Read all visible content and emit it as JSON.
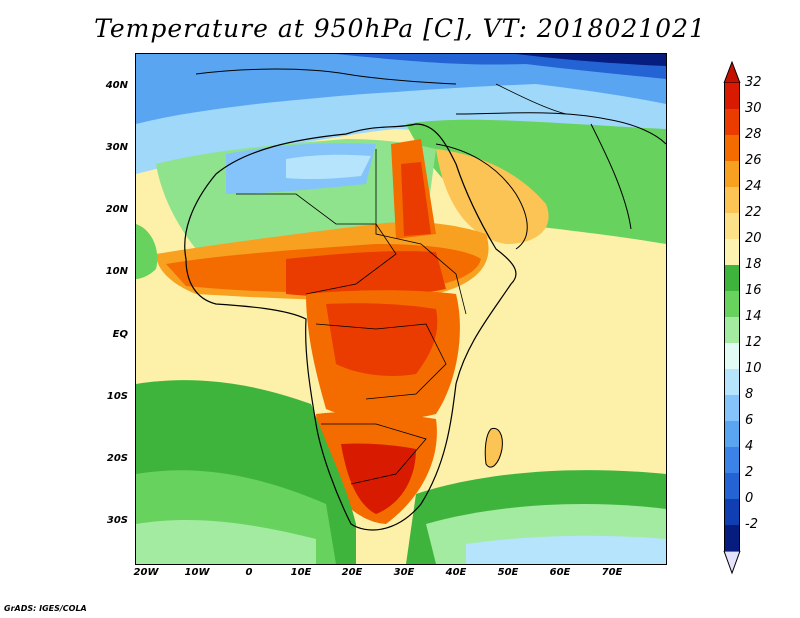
{
  "title": "Temperature at 950hPa [C], VT: 2018021021",
  "lat_labels": [
    "40N",
    "30N",
    "20N",
    "10N",
    "EQ",
    "10S",
    "20S",
    "30S"
  ],
  "lon_labels": [
    "20W",
    "10W",
    "0",
    "10E",
    "20E",
    "30E",
    "40E",
    "50E",
    "60E",
    "70E"
  ],
  "colorbar": {
    "labels": [
      "32",
      "30",
      "28",
      "26",
      "24",
      "22",
      "20",
      "18",
      "16",
      "14",
      "12",
      "10",
      "8",
      "6",
      "4",
      "2",
      "0",
      "-2"
    ],
    "colors": [
      "#d81a00",
      "#ea3b00",
      "#f46c00",
      "#f8a020",
      "#fbc454",
      "#fde188",
      "#fdf3b0",
      "#3fb43c",
      "#68d25e",
      "#a2eba0",
      "#e2fbf4",
      "#b5e4fc",
      "#84c4fa",
      "#5aa5f2",
      "#3b83e6",
      "#2463d3",
      "#0f3fb2",
      "#071c7f"
    ],
    "top_arrow_color": "#c41100",
    "bottom_arrow_color": "#e5e3fc"
  },
  "credit": "GrADS: IGES/COLA"
}
